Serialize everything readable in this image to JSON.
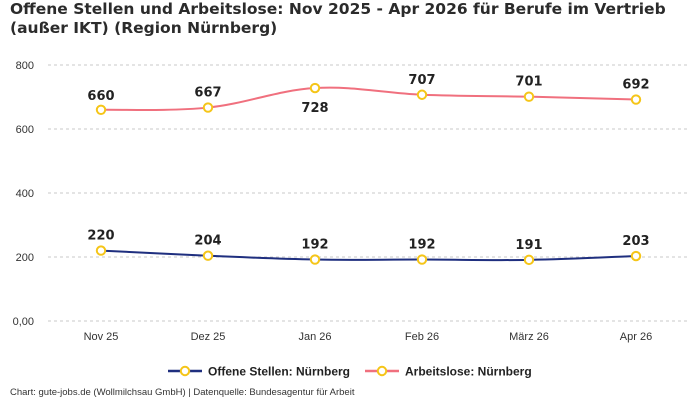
{
  "chart_data": {
    "type": "line",
    "title": "Offene Stellen und Arbeitslose: Nov 2025 - Apr 2026 für Berufe im Vertrieb (außer IKT) (Region Nürnberg)",
    "xlabel": "",
    "ylabel": "",
    "categories": [
      "Nov 25",
      "Dez 25",
      "Jan 26",
      "Feb 26",
      "März 26",
      "Apr 26"
    ],
    "ylim": [
      0,
      800
    ],
    "yticks": [
      0,
      200,
      400,
      600,
      800
    ],
    "ytick_labels": [
      "0,00",
      "200",
      "400",
      "600",
      "800"
    ],
    "grid": true,
    "legend_position": "bottom",
    "series": [
      {
        "name": "Offene Stellen: Nürnberg",
        "values": [
          220,
          204,
          192,
          192,
          191,
          203
        ],
        "labels": [
          "220",
          "204",
          "192",
          "192",
          "191",
          "203"
        ],
        "color": "#1f2f7f"
      },
      {
        "name": "Arbeitslose: Nürnberg",
        "values": [
          660,
          667,
          728,
          707,
          701,
          692
        ],
        "labels": [
          "660",
          "667",
          "728",
          "707",
          "701",
          "692"
        ],
        "color": "#f0707e"
      }
    ],
    "marker_color": "#f5c518"
  },
  "footer": {
    "source": "Chart: gute-jobs.de (Wollmilchsau GmbH) | Datenquelle: Bundesagentur für Arbeit"
  }
}
